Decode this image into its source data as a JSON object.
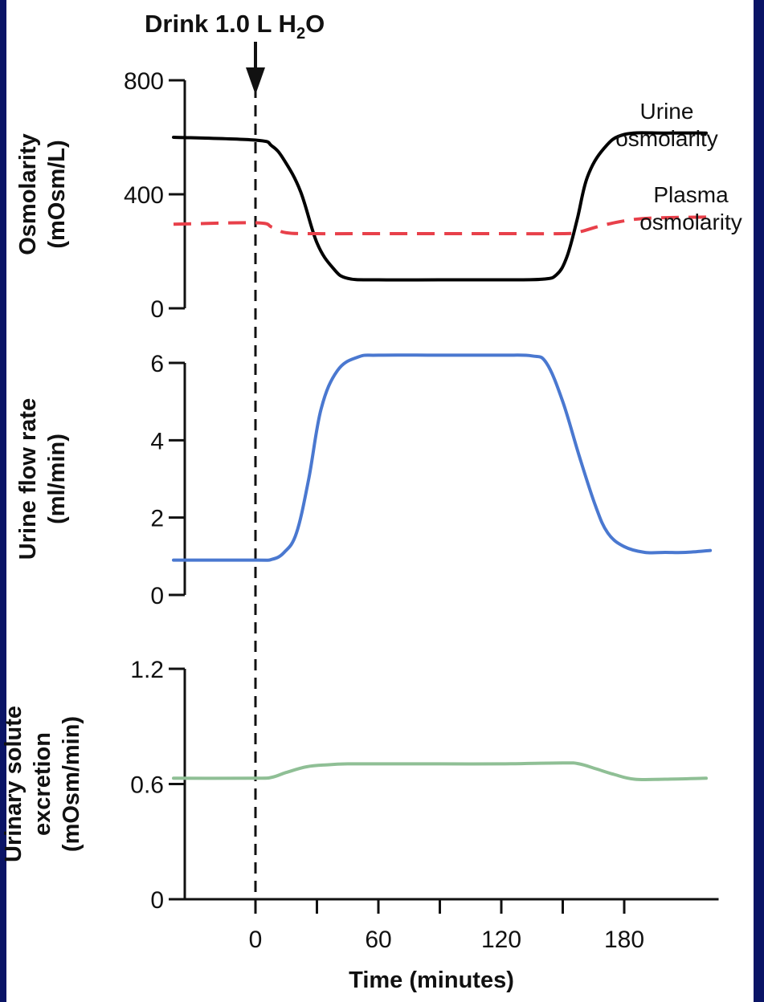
{
  "annotation": {
    "label_prefix": "Drink 1.0 L H",
    "subscript": "2",
    "label_suffix": "O"
  },
  "x_axis": {
    "title": "Time (minutes)",
    "range": [
      -40,
      230
    ],
    "tick_values": [
      0,
      30,
      60,
      90,
      120,
      150,
      180
    ],
    "tick_labels": [
      "0",
      "",
      "60",
      "",
      "120",
      "",
      "180"
    ]
  },
  "colors": {
    "background": "#0a1466",
    "urine_osmolarity": "#000000",
    "plasma_osmolarity": "#e8404a",
    "urine_flow": "#4a78d0",
    "solute_excretion": "#8fbf95"
  },
  "chart_data": [
    {
      "type": "line",
      "ylabel": [
        "Osmolarity",
        "(mOsm/L)"
      ],
      "ylim": [
        0,
        800
      ],
      "yticks": [
        {
          "value": 0,
          "label": "0"
        },
        {
          "value": 400,
          "label": "400"
        },
        {
          "value": 800,
          "label": "800"
        }
      ],
      "series": [
        {
          "name": "Urine osmolarity",
          "legend_lines": [
            "Urine",
            "osmolarity"
          ],
          "style": "solid",
          "x": [
            -40,
            0,
            8,
            14,
            22,
            30,
            38,
            45,
            60,
            90,
            120,
            140,
            147,
            152,
            157,
            162,
            170,
            180,
            200,
            220
          ],
          "y": [
            600,
            590,
            570,
            520,
            410,
            230,
            140,
            105,
            100,
            100,
            100,
            102,
            118,
            180,
            310,
            460,
            560,
            610,
            615,
            615
          ]
        },
        {
          "name": "Plasma osmolarity",
          "legend_lines": [
            "Plasma",
            "osmolarity"
          ],
          "style": "dashed",
          "x": [
            -40,
            0,
            8,
            15,
            30,
            60,
            90,
            120,
            150,
            158,
            170,
            185,
            200,
            220
          ],
          "y": [
            295,
            300,
            285,
            265,
            262,
            262,
            262,
            262,
            262,
            268,
            292,
            312,
            318,
            320
          ]
        }
      ]
    },
    {
      "type": "line",
      "ylabel": [
        "Urine flow rate",
        "(ml/min)"
      ],
      "ylim": [
        0,
        6
      ],
      "yticks": [
        {
          "value": 0,
          "label": "0"
        },
        {
          "value": 2,
          "label": "2"
        },
        {
          "value": 4,
          "label": "4"
        },
        {
          "value": 6,
          "label": "6"
        }
      ],
      "series": [
        {
          "style": "solid",
          "x": [
            -40,
            0,
            8,
            14,
            20,
            26,
            32,
            40,
            50,
            60,
            90,
            120,
            135,
            142,
            150,
            158,
            166,
            172,
            180,
            190,
            200,
            210,
            222
          ],
          "y": [
            0.9,
            0.9,
            0.92,
            1.1,
            1.6,
            3.0,
            4.8,
            5.8,
            6.15,
            6.2,
            6.2,
            6.2,
            6.18,
            6.0,
            5.0,
            3.6,
            2.3,
            1.6,
            1.25,
            1.1,
            1.1,
            1.1,
            1.15
          ]
        }
      ]
    },
    {
      "type": "line",
      "ylabel": [
        "Urinary solute",
        "excretion",
        "(mOsm/min)"
      ],
      "ylim": [
        0,
        1.2
      ],
      "yticks": [
        {
          "value": 0,
          "label": "0"
        },
        {
          "value": 0.6,
          "label": "0.6"
        },
        {
          "value": 1.2,
          "label": "1.2"
        }
      ],
      "series": [
        {
          "style": "solid",
          "x": [
            -40,
            0,
            8,
            15,
            25,
            35,
            45,
            60,
            90,
            120,
            150,
            158,
            166,
            175,
            185,
            200,
            220
          ],
          "y": [
            0.63,
            0.63,
            0.635,
            0.66,
            0.69,
            0.7,
            0.705,
            0.705,
            0.705,
            0.705,
            0.71,
            0.705,
            0.68,
            0.65,
            0.625,
            0.625,
            0.63
          ]
        }
      ]
    }
  ]
}
